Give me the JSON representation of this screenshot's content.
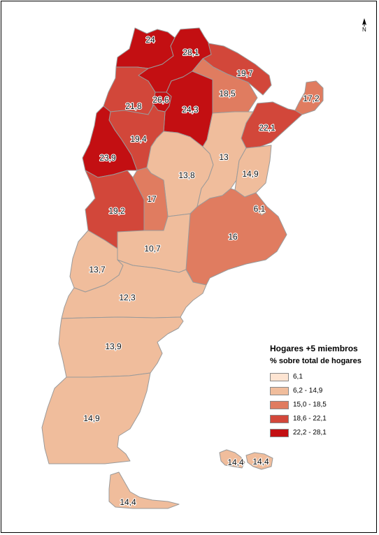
{
  "legend": {
    "title": "Hogares +5 miembros",
    "subtitle": "% sobre total de hogares",
    "classes": [
      {
        "label": "6,1",
        "color": "#fde4d2"
      },
      {
        "label": "6,2 - 14,9",
        "color": "#f0bd9c"
      },
      {
        "label": "15,0 - 18,5",
        "color": "#e07c60"
      },
      {
        "label": "18,6 - 22,1",
        "color": "#d2473a"
      },
      {
        "label": "22,2 - 28,1",
        "color": "#c30f12"
      }
    ]
  },
  "north_label": "N",
  "provinces": [
    {
      "name": "Jujuy",
      "value": "24",
      "class": 4
    },
    {
      "name": "Salta",
      "value": "28,1",
      "class": 4
    },
    {
      "name": "Formosa",
      "value": "19,7",
      "class": 3
    },
    {
      "name": "Chaco",
      "value": "18,5",
      "class": 2
    },
    {
      "name": "Misiones",
      "value": "17,2",
      "class": 2
    },
    {
      "name": "Catamarca",
      "value": "21,8",
      "class": 3
    },
    {
      "name": "Tucumán",
      "value": "26,6",
      "class": 4
    },
    {
      "name": "Santiago del Estero",
      "value": "24,3",
      "class": 4
    },
    {
      "name": "Corrientes",
      "value": "22,1",
      "class": 3
    },
    {
      "name": "La Rioja",
      "value": "19,4",
      "class": 3
    },
    {
      "name": "San Juan",
      "value": "23,9",
      "class": 4
    },
    {
      "name": "Córdoba",
      "value": "13,8",
      "class": 1
    },
    {
      "name": "Santa Fe",
      "value": "13",
      "class": 1
    },
    {
      "name": "Entre Ríos",
      "value": "14,9",
      "class": 1
    },
    {
      "name": "San Luis",
      "value": "17",
      "class": 2
    },
    {
      "name": "Mendoza",
      "value": "19,2",
      "class": 3
    },
    {
      "name": "CABA",
      "value": "6,1",
      "class": 0
    },
    {
      "name": "Buenos Aires",
      "value": "16",
      "class": 2
    },
    {
      "name": "La Pampa",
      "value": "10,7",
      "class": 1
    },
    {
      "name": "Neuquén",
      "value": "13,7",
      "class": 1
    },
    {
      "name": "Río Negro",
      "value": "12,3",
      "class": 1
    },
    {
      "name": "Chubut",
      "value": "13,9",
      "class": 1
    },
    {
      "name": "Santa Cruz",
      "value": "14,9",
      "class": 1
    },
    {
      "name": "Islas Malvinas (oeste)",
      "value": "14,4",
      "class": 1
    },
    {
      "name": "Islas Malvinas (este)",
      "value": "14,4",
      "class": 1
    },
    {
      "name": "Tierra del Fuego",
      "value": "14,4",
      "class": 1
    }
  ]
}
